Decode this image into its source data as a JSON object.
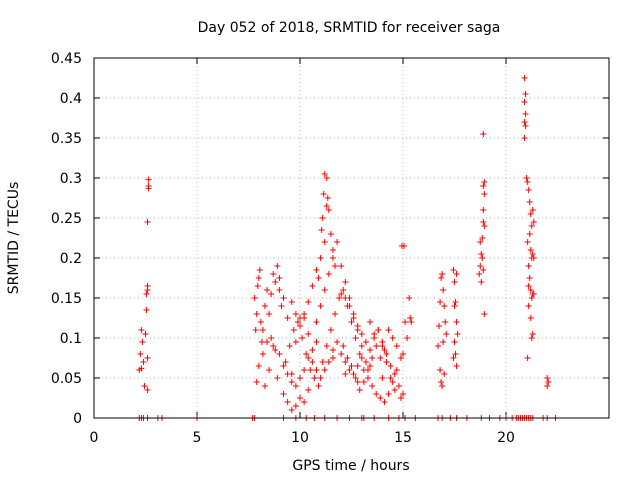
{
  "chart_data": {
    "type": "scatter",
    "title": "Day 052 of 2018, SRMTID for receiver saga",
    "xlabel": "GPS time / hours",
    "ylabel": "SRMTID / TECUs",
    "xlim": [
      0,
      25
    ],
    "ylim": [
      0,
      0.45
    ],
    "xticks": [
      "0",
      "5",
      "10",
      "15",
      "20"
    ],
    "yticks": [
      "0",
      "0.05",
      "0.1",
      "0.15",
      "0.2",
      "0.25",
      "0.3",
      "0.35",
      "0.4",
      "0.45"
    ],
    "grid": true,
    "marker": "+",
    "color": "#ff0000",
    "series": [
      {
        "name": "SRMTID",
        "points": [
          [
            2.2,
            0.0
          ],
          [
            2.3,
            0.0
          ],
          [
            2.4,
            0.0
          ],
          [
            2.6,
            0.0
          ],
          [
            3.1,
            0.0
          ],
          [
            3.3,
            0.0
          ],
          [
            5.0,
            0.0
          ],
          [
            7.7,
            0.0
          ],
          [
            7.8,
            0.0
          ],
          [
            9.2,
            0.0
          ],
          [
            9.8,
            0.0
          ],
          [
            10.3,
            0.0
          ],
          [
            10.7,
            0.0
          ],
          [
            11.2,
            0.0
          ],
          [
            11.8,
            0.0
          ],
          [
            12.4,
            0.0
          ],
          [
            13.0,
            0.0
          ],
          [
            13.1,
            0.0
          ],
          [
            13.6,
            0.0
          ],
          [
            14.3,
            0.0
          ],
          [
            14.8,
            0.0
          ],
          [
            15.1,
            0.0
          ],
          [
            15.6,
            0.0
          ],
          [
            16.7,
            0.0
          ],
          [
            16.9,
            0.0
          ],
          [
            17.3,
            0.0
          ],
          [
            17.6,
            0.0
          ],
          [
            18.1,
            0.0
          ],
          [
            18.8,
            0.0
          ],
          [
            19.2,
            0.0
          ],
          [
            19.7,
            0.0
          ],
          [
            20.0,
            0.0
          ],
          [
            20.3,
            0.0
          ],
          [
            20.5,
            0.0
          ],
          [
            20.6,
            0.0
          ],
          [
            20.7,
            0.0
          ],
          [
            20.8,
            0.0
          ],
          [
            20.9,
            0.0
          ],
          [
            21.0,
            0.0
          ],
          [
            21.1,
            0.0
          ],
          [
            21.2,
            0.0
          ],
          [
            21.3,
            0.0
          ],
          [
            21.8,
            0.0
          ],
          [
            22.0,
            0.0
          ],
          [
            22.4,
            0.0
          ],
          [
            2.2,
            0.06
          ],
          [
            2.25,
            0.08
          ],
          [
            2.3,
            0.11
          ],
          [
            2.35,
            0.095
          ],
          [
            2.4,
            0.07
          ],
          [
            2.45,
            0.04
          ],
          [
            2.5,
            0.105
          ],
          [
            2.55,
            0.135
          ],
          [
            2.55,
            0.155
          ],
          [
            2.6,
            0.16
          ],
          [
            2.6,
            0.165
          ],
          [
            2.6,
            0.245
          ],
          [
            2.65,
            0.29
          ],
          [
            2.65,
            0.287
          ],
          [
            2.65,
            0.298
          ],
          [
            2.6,
            0.075
          ],
          [
            2.6,
            0.035
          ],
          [
            2.3,
            0.062
          ],
          [
            7.8,
            0.15
          ],
          [
            7.85,
            0.11
          ],
          [
            7.9,
            0.13
          ],
          [
            7.95,
            0.165
          ],
          [
            8.0,
            0.175
          ],
          [
            8.05,
            0.185
          ],
          [
            8.1,
            0.12
          ],
          [
            8.15,
            0.095
          ],
          [
            7.9,
            0.045
          ],
          [
            8.0,
            0.065
          ],
          [
            8.2,
            0.08
          ],
          [
            8.3,
            0.14
          ],
          [
            8.4,
            0.16
          ],
          [
            8.5,
            0.13
          ],
          [
            8.6,
            0.155
          ],
          [
            8.7,
            0.18
          ],
          [
            8.8,
            0.17
          ],
          [
            8.9,
            0.19
          ],
          [
            9.0,
            0.175
          ],
          [
            9.1,
            0.14
          ],
          [
            8.3,
            0.04
          ],
          [
            8.5,
            0.06
          ],
          [
            8.7,
            0.09
          ],
          [
            8.9,
            0.05
          ],
          [
            9.2,
            0.03
          ],
          [
            9.4,
            0.02
          ],
          [
            9.6,
            0.01
          ],
          [
            9.8,
            0.015
          ],
          [
            10.0,
            0.025
          ],
          [
            10.2,
            0.02
          ],
          [
            10.4,
            0.035
          ],
          [
            9.3,
            0.07
          ],
          [
            9.5,
            0.09
          ],
          [
            9.7,
            0.11
          ],
          [
            9.9,
            0.12
          ],
          [
            10.1,
            0.1
          ],
          [
            10.3,
            0.08
          ],
          [
            10.5,
            0.06
          ],
          [
            10.7,
            0.05
          ],
          [
            10.9,
            0.04
          ],
          [
            11.1,
            0.07
          ],
          [
            11.3,
            0.09
          ],
          [
            11.5,
            0.11
          ],
          [
            11.7,
            0.13
          ],
          [
            11.9,
            0.15
          ],
          [
            12.1,
            0.16
          ],
          [
            12.3,
            0.14
          ],
          [
            12.5,
            0.12
          ],
          [
            12.7,
            0.1
          ],
          [
            12.9,
            0.08
          ],
          [
            13.1,
            0.06
          ],
          [
            13.3,
            0.05
          ],
          [
            13.5,
            0.04
          ],
          [
            13.7,
            0.03
          ],
          [
            13.9,
            0.025
          ],
          [
            14.1,
            0.02
          ],
          [
            14.3,
            0.03
          ],
          [
            14.5,
            0.045
          ],
          [
            14.7,
            0.06
          ],
          [
            9.6,
            0.055
          ],
          [
            10.8,
            0.095
          ],
          [
            11.6,
            0.075
          ],
          [
            12.2,
            0.055
          ],
          [
            12.8,
            0.045
          ],
          [
            13.4,
            0.065
          ],
          [
            14.0,
            0.05
          ],
          [
            9.0,
            0.16
          ],
          [
            9.2,
            0.15
          ],
          [
            9.4,
            0.125
          ],
          [
            9.6,
            0.145
          ],
          [
            9.8,
            0.13
          ],
          [
            10.0,
            0.115
          ],
          [
            10.2,
            0.125
          ],
          [
            10.4,
            0.105
          ],
          [
            10.6,
            0.085
          ],
          [
            10.8,
            0.12
          ],
          [
            11.0,
            0.14
          ],
          [
            11.2,
            0.16
          ],
          [
            11.4,
            0.18
          ],
          [
            11.6,
            0.2
          ],
          [
            11.8,
            0.22
          ],
          [
            12.0,
            0.19
          ],
          [
            12.2,
            0.17
          ],
          [
            12.4,
            0.15
          ],
          [
            12.6,
            0.13
          ],
          [
            12.8,
            0.11
          ],
          [
            13.0,
            0.09
          ],
          [
            13.2,
            0.07
          ],
          [
            13.4,
            0.085
          ],
          [
            13.6,
            0.1
          ],
          [
            13.8,
            0.11
          ],
          [
            14.0,
            0.09
          ],
          [
            14.2,
            0.07
          ],
          [
            14.4,
            0.05
          ],
          [
            14.6,
            0.035
          ],
          [
            10.9,
            0.175
          ],
          [
            11.0,
            0.2
          ],
          [
            11.05,
            0.235
          ],
          [
            11.1,
            0.25
          ],
          [
            11.15,
            0.28
          ],
          [
            11.2,
            0.305
          ],
          [
            11.3,
            0.3
          ],
          [
            11.35,
            0.275
          ],
          [
            11.4,
            0.26
          ],
          [
            11.5,
            0.23
          ],
          [
            11.6,
            0.21
          ],
          [
            11.7,
            0.19
          ],
          [
            11.3,
            0.265
          ],
          [
            11.2,
            0.22
          ],
          [
            10.8,
            0.185
          ],
          [
            10.6,
            0.165
          ],
          [
            10.4,
            0.145
          ],
          [
            10.2,
            0.13
          ],
          [
            10.0,
            0.125
          ],
          [
            9.8,
            0.095
          ],
          [
            12.0,
            0.155
          ],
          [
            12.2,
            0.15
          ],
          [
            12.4,
            0.14
          ],
          [
            12.6,
            0.125
          ],
          [
            12.8,
            0.115
          ],
          [
            13.0,
            0.105
          ],
          [
            13.2,
            0.095
          ],
          [
            13.4,
            0.12
          ],
          [
            13.6,
            0.105
          ],
          [
            13.8,
            0.11
          ],
          [
            14.0,
            0.095
          ],
          [
            14.2,
            0.08
          ],
          [
            14.4,
            0.065
          ],
          [
            14.6,
            0.055
          ],
          [
            14.8,
            0.04
          ],
          [
            14.9,
            0.025
          ],
          [
            15.0,
            0.03
          ],
          [
            14.9,
            0.075
          ],
          [
            15.0,
            0.08
          ],
          [
            15.1,
            0.12
          ],
          [
            15.2,
            0.1
          ],
          [
            14.95,
            0.215
          ],
          [
            15.05,
            0.215
          ],
          [
            15.3,
            0.15
          ],
          [
            15.35,
            0.125
          ],
          [
            15.4,
            0.12
          ],
          [
            14.7,
            0.09
          ],
          [
            14.5,
            0.1
          ],
          [
            14.3,
            0.11
          ],
          [
            14.1,
            0.085
          ],
          [
            13.9,
            0.075
          ],
          [
            13.7,
            0.09
          ],
          [
            13.5,
            0.075
          ],
          [
            13.3,
            0.06
          ],
          [
            13.1,
            0.045
          ],
          [
            12.9,
            0.035
          ],
          [
            12.7,
            0.05
          ],
          [
            12.5,
            0.065
          ],
          [
            12.3,
            0.075
          ],
          [
            12.1,
            0.09
          ],
          [
            8.2,
            0.11
          ],
          [
            8.4,
            0.095
          ],
          [
            8.6,
            0.1
          ],
          [
            8.8,
            0.085
          ],
          [
            9.0,
            0.08
          ],
          [
            9.2,
            0.065
          ],
          [
            9.4,
            0.055
          ],
          [
            9.6,
            0.045
          ],
          [
            9.8,
            0.04
          ],
          [
            10.0,
            0.05
          ],
          [
            10.2,
            0.06
          ],
          [
            10.4,
            0.075
          ],
          [
            10.6,
            0.07
          ],
          [
            10.8,
            0.06
          ],
          [
            11.0,
            0.05
          ],
          [
            11.2,
            0.06
          ],
          [
            11.4,
            0.07
          ],
          [
            11.6,
            0.085
          ],
          [
            11.8,
            0.095
          ],
          [
            12.0,
            0.08
          ],
          [
            12.2,
            0.07
          ],
          [
            12.4,
            0.06
          ],
          [
            12.6,
            0.055
          ],
          [
            12.8,
            0.065
          ],
          [
            13.0,
            0.075
          ],
          [
            16.7,
            0.09
          ],
          [
            16.75,
            0.115
          ],
          [
            16.8,
            0.145
          ],
          [
            16.85,
            0.175
          ],
          [
            16.9,
            0.18
          ],
          [
            16.95,
            0.16
          ],
          [
            17.0,
            0.14
          ],
          [
            17.05,
            0.12
          ],
          [
            17.1,
            0.105
          ],
          [
            16.8,
            0.06
          ],
          [
            16.85,
            0.045
          ],
          [
            16.9,
            0.04
          ],
          [
            17.0,
            0.055
          ],
          [
            16.95,
            0.095
          ],
          [
            17.45,
            0.185
          ],
          [
            17.5,
            0.17
          ],
          [
            17.55,
            0.145
          ],
          [
            17.6,
            0.12
          ],
          [
            17.5,
            0.095
          ],
          [
            17.55,
            0.08
          ],
          [
            17.6,
            0.065
          ],
          [
            17.45,
            0.075
          ],
          [
            17.65,
            0.105
          ],
          [
            17.6,
            0.18
          ],
          [
            17.5,
            0.14
          ],
          [
            18.7,
            0.18
          ],
          [
            18.75,
            0.19
          ],
          [
            18.8,
            0.205
          ],
          [
            18.85,
            0.225
          ],
          [
            18.9,
            0.245
          ],
          [
            18.9,
            0.26
          ],
          [
            18.95,
            0.28
          ],
          [
            18.9,
            0.29
          ],
          [
            18.95,
            0.295
          ],
          [
            18.9,
            0.355
          ],
          [
            18.95,
            0.13
          ],
          [
            18.8,
            0.17
          ],
          [
            18.85,
            0.2
          ],
          [
            18.75,
            0.22
          ],
          [
            18.9,
            0.185
          ],
          [
            18.95,
            0.24
          ],
          [
            20.9,
            0.425
          ],
          [
            20.95,
            0.405
          ],
          [
            20.9,
            0.395
          ],
          [
            20.95,
            0.38
          ],
          [
            20.9,
            0.37
          ],
          [
            20.95,
            0.365
          ],
          [
            20.9,
            0.35
          ],
          [
            21.0,
            0.3
          ],
          [
            21.05,
            0.295
          ],
          [
            21.1,
            0.285
          ],
          [
            21.15,
            0.27
          ],
          [
            21.2,
            0.255
          ],
          [
            21.25,
            0.24
          ],
          [
            21.3,
            0.26
          ],
          [
            21.35,
            0.245
          ],
          [
            21.2,
            0.21
          ],
          [
            21.25,
            0.2
          ],
          [
            21.3,
            0.205
          ],
          [
            21.1,
            0.19
          ],
          [
            21.15,
            0.175
          ],
          [
            21.2,
            0.16
          ],
          [
            21.25,
            0.15
          ],
          [
            21.3,
            0.155
          ],
          [
            21.1,
            0.14
          ],
          [
            21.2,
            0.125
          ],
          [
            21.3,
            0.105
          ],
          [
            21.25,
            0.1
          ],
          [
            21.05,
            0.075
          ],
          [
            21.35,
            0.2
          ],
          [
            21.15,
            0.23
          ],
          [
            21.05,
            0.22
          ],
          [
            21.1,
            0.165
          ],
          [
            21.35,
            0.155
          ],
          [
            22.0,
            0.05
          ],
          [
            22.05,
            0.045
          ],
          [
            22.0,
            0.04
          ]
        ]
      }
    ]
  }
}
